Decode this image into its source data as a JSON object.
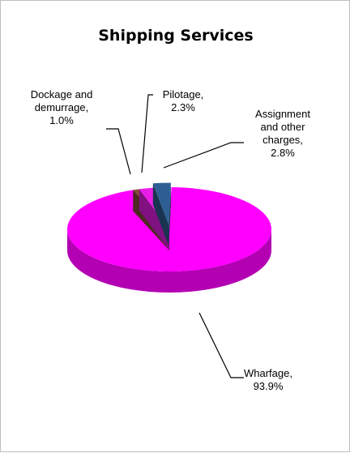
{
  "chart_data": {
    "type": "pie",
    "title": "Shipping Services",
    "categories": [
      "Wharfage,",
      "Dockage and demurrage,",
      "Pilotage,",
      "Assignment and other charges,"
    ],
    "values": [
      93.9,
      1.0,
      2.3,
      2.8
    ],
    "value_labels": [
      "93.9%",
      "1.0%",
      "2.3%",
      "2.8%"
    ],
    "colors": [
      "#ff00ff",
      "#8c4a3c",
      "#e81ee8",
      "#2e5f94"
    ],
    "exploded": [
      false,
      false,
      false,
      true
    ]
  }
}
